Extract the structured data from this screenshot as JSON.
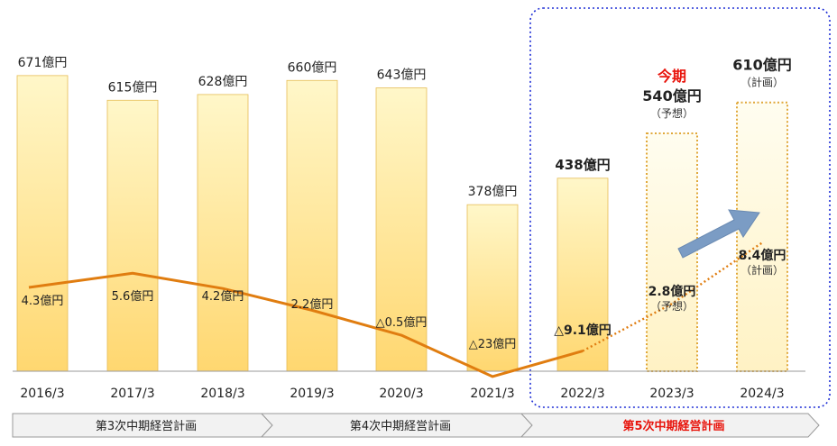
{
  "chart_data": {
    "type": "bar",
    "categories": [
      "2016/3",
      "2017/3",
      "2018/3",
      "2019/3",
      "2020/3",
      "2021/3",
      "2022/3",
      "2023/3",
      "2024/3"
    ],
    "series": [
      {
        "values": [
          671,
          615,
          628,
          660,
          643,
          378,
          438,
          540,
          610
        ],
        "labels": [
          "671億円",
          "615億円",
          "628億円",
          "660億円",
          "643億円",
          "378億円",
          "438億円",
          "540億円",
          "610億円"
        ],
        "status": [
          "actual",
          "actual",
          "actual",
          "actual",
          "actual",
          "actual",
          "actual",
          "forecast",
          "plan"
        ]
      },
      {
        "values": [
          4.3,
          5.6,
          4.2,
          2.2,
          -0.5,
          -23,
          -9.1,
          2.8,
          8.4
        ],
        "labels": [
          "4.3億円",
          "5.6億円",
          "4.2億円",
          "2.2億円",
          "△0.5億円",
          "△23億円",
          "△9.1億円",
          "2.8億円",
          "8.4億円"
        ],
        "status": [
          "actual",
          "actual",
          "actual",
          "actual",
          "actual",
          "actual",
          "actual",
          "forecast",
          "plan"
        ]
      }
    ],
    "annotations": {
      "current_period": "今期",
      "forecast_note": "（予想）",
      "plan_note": "（計画）"
    },
    "plans": [
      "第3次中期経営計画",
      "第4次中期経営計画",
      "第5次中期経営計画"
    ],
    "colors": {
      "bar_top": "#fff7c9",
      "bar_bottom": "#ffd770",
      "bar_stroke": "#e6bc55",
      "dotted_bar": "#e0a83a",
      "line": "#e07d10",
      "arrow": "#7b9cc4",
      "highlight": "#e8140c",
      "box": "#1f2fd6",
      "chevron_fill": "#f2f2f2",
      "chevron_stroke": "#9a9a9a"
    }
  }
}
